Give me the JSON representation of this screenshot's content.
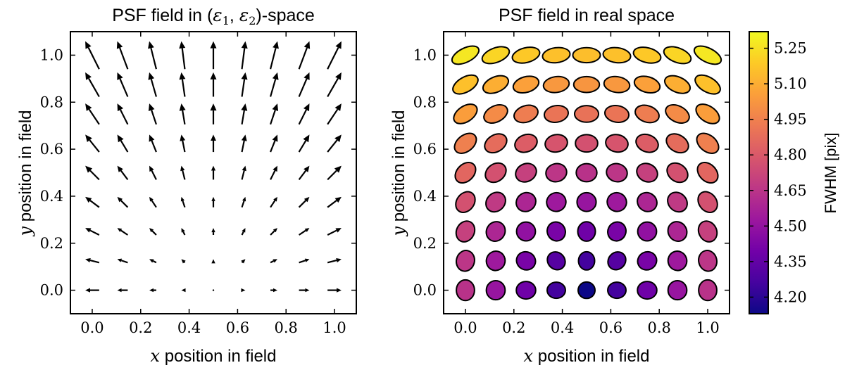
{
  "chart_data": [
    {
      "type": "quiver",
      "title_prefix": "PSF field in (",
      "title_e1": "ε",
      "title_sub1": "1",
      "title_mid": ", ",
      "title_e2": "ε",
      "title_sub2": "2",
      "title_suffix": ")-space",
      "xlabel_var": "x",
      "xlabel_text": " position in field",
      "ylabel_var": "y",
      "ylabel_text": " position in field",
      "xlim": [
        -0.09,
        1.09
      ],
      "ylim": [
        -0.1,
        1.1
      ],
      "xticks": [
        0.0,
        0.2,
        0.4,
        0.6,
        0.8,
        1.0
      ],
      "xtick_labels": [
        "0.0",
        "0.2",
        "0.4",
        "0.6",
        "0.8",
        "1.0"
      ],
      "yticks": [
        0.0,
        0.2,
        0.4,
        0.6,
        0.8,
        1.0
      ],
      "ytick_labels": [
        "0.0",
        "0.2",
        "0.4",
        "0.6",
        "0.8",
        "1.0"
      ],
      "grid": false,
      "positions": [
        0.0,
        0.125,
        0.25,
        0.375,
        0.5,
        0.625,
        0.75,
        0.875,
        1.0
      ],
      "center": [
        0.5,
        0.0
      ],
      "vector_scale": 0.115
    },
    {
      "type": "ellipse-field",
      "title": "PSF field in real space",
      "xlabel_var": "x",
      "xlabel_text": " position in field",
      "ylabel_var": "y",
      "ylabel_text": " position in field",
      "xlim": [
        -0.09,
        1.09
      ],
      "ylim": [
        -0.1,
        1.1
      ],
      "xticks": [
        0.0,
        0.2,
        0.4,
        0.6,
        0.8,
        1.0
      ],
      "xtick_labels": [
        "0.0",
        "0.2",
        "0.4",
        "0.6",
        "0.8",
        "1.0"
      ],
      "yticks": [
        0.0,
        0.2,
        0.4,
        0.6,
        0.8,
        1.0
      ],
      "ytick_labels": [
        "0.0",
        "0.2",
        "0.4",
        "0.6",
        "0.8",
        "1.0"
      ],
      "grid": false,
      "positions": [
        0.0,
        0.125,
        0.25,
        0.375,
        0.5,
        0.625,
        0.75,
        0.875,
        1.0
      ],
      "fwhm_min_corner": 4.13,
      "fwhm_max_corner": 5.27,
      "colorbar": {
        "label": "FWHM [pix]",
        "range": [
          4.13,
          5.32
        ],
        "ticks": [
          4.2,
          4.35,
          4.5,
          4.65,
          4.8,
          4.95,
          5.1,
          5.25
        ],
        "tick_labels": [
          "4.20",
          "4.35",
          "4.50",
          "4.65",
          "4.80",
          "4.95",
          "5.10",
          "5.25"
        ],
        "colormap": "plasma",
        "colormap_stops": [
          "#0d0887",
          "#46039f",
          "#7201a8",
          "#9c179e",
          "#bd3786",
          "#d8576b",
          "#ed7953",
          "#fb9f3a",
          "#fdca26",
          "#f0f921"
        ]
      }
    }
  ]
}
